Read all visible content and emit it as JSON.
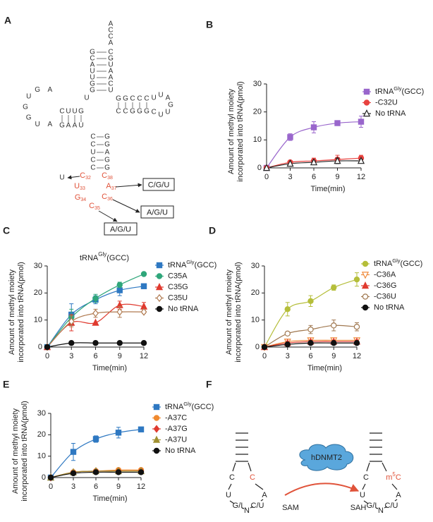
{
  "panel_labels": [
    "A",
    "B",
    "C",
    "D",
    "E",
    "F"
  ],
  "trna": {
    "acceptor_end": "ACCA",
    "acceptor_5": "GCAUUGG",
    "acceptor_3": "CGUAACU",
    "junction": "U",
    "t_top": "GGCCC",
    "t_bottom": "CCGGG",
    "t_loop": "UUAGUUC",
    "d_top": "CUUG",
    "d_bottom": "GAAU",
    "d_loop": "AGUGGUA",
    "ac_5": "CCUCC",
    "ac_3": "GGAGG",
    "loop": [
      {
        "base": "C",
        "num": "32"
      },
      {
        "base": "U",
        "num": "33"
      },
      {
        "base": "G",
        "num": "34"
      },
      {
        "base": "C",
        "num": "35"
      },
      {
        "base": "C",
        "num": "36"
      },
      {
        "base": "A",
        "num": "37"
      },
      {
        "base": "C",
        "num": "38"
      }
    ],
    "mutations": [
      "U",
      "C/G/U",
      "A/G/U",
      "A/G/U"
    ],
    "label": [
      "tRNA",
      "Gly",
      "(GCC)"
    ]
  },
  "chart_data": [
    {
      "type": "line",
      "xlabel": "Time(min)",
      "ylabel": [
        "Amount of methyl moiety",
        "incorporated into tRNA(pmol)"
      ],
      "x": [
        0,
        3,
        6,
        9,
        12
      ],
      "xlim": [
        0,
        12
      ],
      "ylim": [
        0,
        30
      ],
      "xticks": [
        0,
        3,
        6,
        9,
        12
      ],
      "yticks": [
        0,
        10,
        20,
        30
      ],
      "series": [
        {
          "name": [
            "tRNA",
            "Gly",
            "(GCC)"
          ],
          "color": "#9966cc",
          "marker": "square",
          "open": false,
          "values": [
            0,
            11,
            14.5,
            16,
            16.5
          ],
          "errors": [
            0,
            1.2,
            2,
            0.5,
            2
          ]
        },
        {
          "name": "-C32U",
          "color": "#e8423f",
          "marker": "circle",
          "open": false,
          "values": [
            0,
            2,
            2.5,
            3,
            3.5
          ],
          "errors": [
            0,
            0.5,
            1,
            1.5,
            1
          ]
        },
        {
          "name": "No tRNA",
          "color": "#222222",
          "marker": "triangle",
          "open": true,
          "values": [
            0,
            1.5,
            2,
            2.5,
            2.5
          ],
          "errors": [
            0,
            0,
            0.5,
            1,
            0.5
          ]
        }
      ]
    },
    {
      "type": "line",
      "xlabel": "Time(min)",
      "ylabel": [
        "Amount of methyl moiety",
        "incorporated into tRNA(pmol)"
      ],
      "x": [
        0,
        3,
        6,
        9,
        12
      ],
      "xlim": [
        0,
        12
      ],
      "ylim": [
        0,
        30
      ],
      "xticks": [
        0,
        3,
        6,
        9,
        12
      ],
      "yticks": [
        0,
        10,
        20,
        30
      ],
      "series": [
        {
          "name": [
            "tRNA",
            "Gly",
            "(GCC)"
          ],
          "color": "#2e78c2",
          "marker": "square",
          "open": false,
          "values": [
            0,
            12,
            17.5,
            21,
            22.5
          ],
          "errors": [
            0,
            4,
            1.5,
            2,
            0
          ]
        },
        {
          "name": "C35A",
          "color": "#2fa67a",
          "marker": "circle",
          "open": false,
          "values": [
            0,
            11,
            18,
            23,
            27
          ],
          "errors": [
            0,
            3,
            1.5,
            1,
            0.5
          ]
        },
        {
          "name": "C35G",
          "color": "#e03a2f",
          "marker": "triangle",
          "open": false,
          "values": [
            0,
            9,
            9,
            15.5,
            15
          ],
          "errors": [
            0,
            3,
            0,
            1.5,
            1.5
          ]
        },
        {
          "name": "C35U",
          "color": "#b07a50",
          "marker": "diamond",
          "open": true,
          "values": [
            0,
            9.5,
            12.5,
            13,
            13
          ],
          "errors": [
            0,
            2,
            1.5,
            2,
            0.5
          ]
        },
        {
          "name": "No tRNA",
          "color": "#111111",
          "marker": "circle",
          "open": false,
          "values": [
            0,
            1.5,
            1.5,
            1.5,
            1.5
          ],
          "errors": [
            0,
            0,
            0,
            0,
            0
          ]
        }
      ]
    },
    {
      "type": "line",
      "xlabel": "Time(min)",
      "ylabel": [
        "Amount of methyl moiety",
        "incorporated into tRNA(pmol)"
      ],
      "x": [
        0,
        3,
        6,
        9,
        12
      ],
      "xlim": [
        0,
        12
      ],
      "ylim": [
        0,
        30
      ],
      "xticks": [
        0,
        3,
        6,
        9,
        12
      ],
      "yticks": [
        0,
        10,
        20,
        30
      ],
      "series": [
        {
          "name": [
            "tRNA",
            "Gly",
            "(GCC)"
          ],
          "color": "#b5be3a",
          "marker": "circle",
          "open": false,
          "values": [
            0,
            14,
            17,
            22,
            25
          ],
          "errors": [
            0,
            2.5,
            2,
            1,
            2.5
          ]
        },
        {
          "name": "-C36A",
          "color": "#f08a3a",
          "marker": "triangle-down",
          "open": true,
          "values": [
            0,
            2,
            2.5,
            2.5,
            2.5
          ],
          "errors": [
            0,
            0.5,
            0.5,
            0.5,
            0.5
          ]
        },
        {
          "name": "-C36G",
          "color": "#e03a2f",
          "marker": "triangle",
          "open": false,
          "values": [
            0,
            1.5,
            2,
            2,
            2
          ],
          "errors": [
            0,
            0.5,
            0.5,
            0.5,
            0.5
          ]
        },
        {
          "name": "-C36U",
          "color": "#a07850",
          "marker": "circle",
          "open": true,
          "values": [
            0,
            5,
            6.5,
            8,
            7.5
          ],
          "errors": [
            0,
            0.5,
            1.5,
            2,
            1.5
          ]
        },
        {
          "name": "No tRNA",
          "color": "#111111",
          "marker": "circle",
          "open": false,
          "values": [
            0,
            1,
            1.5,
            1.5,
            1.5
          ],
          "errors": [
            0,
            0,
            0,
            0,
            0
          ]
        }
      ]
    },
    {
      "type": "line",
      "xlabel": "Time(min)",
      "ylabel": [
        "Amount of methyl moiety",
        "incorporated into tRNA(pmol)"
      ],
      "x": [
        0,
        3,
        6,
        9,
        12
      ],
      "xlim": [
        0,
        12
      ],
      "ylim": [
        0,
        30
      ],
      "xticks": [
        0,
        3,
        6,
        9,
        12
      ],
      "yticks": [
        0,
        10,
        20,
        30
      ],
      "series": [
        {
          "name": [
            "tRNA",
            "Gly",
            "(GCC)"
          ],
          "color": "#2e78c2",
          "marker": "square",
          "open": false,
          "values": [
            0,
            12,
            18,
            21,
            22.5
          ],
          "errors": [
            0,
            4,
            1.5,
            2.5,
            0
          ]
        },
        {
          "name": "-A37C",
          "color": "#f08a30",
          "marker": "circle",
          "open": false,
          "values": [
            0,
            2.5,
            3,
            3.5,
            3.5
          ],
          "errors": [
            0,
            0.5,
            0.5,
            0.5,
            0.5
          ]
        },
        {
          "name": "-A37G",
          "color": "#e03a2f",
          "marker": "diamond",
          "open": false,
          "values": [
            0,
            2.5,
            3,
            3,
            3
          ],
          "errors": [
            0,
            0.5,
            0.5,
            0.5,
            0.5
          ]
        },
        {
          "name": "-A37U",
          "color": "#a09030",
          "marker": "triangle",
          "open": false,
          "values": [
            0,
            2.5,
            3,
            3,
            3
          ],
          "errors": [
            0,
            0.5,
            0.5,
            0.5,
            0.5
          ]
        },
        {
          "name": "No tRNA",
          "color": "#111111",
          "marker": "circle",
          "open": false,
          "values": [
            0,
            2,
            2.5,
            2.5,
            2.5
          ],
          "errors": [
            0,
            0,
            0,
            0,
            0
          ]
        }
      ]
    }
  ],
  "diagram": {
    "left": {
      "bases": [
        "C",
        "U",
        "G/I",
        "N",
        "C/U",
        "A"
      ],
      "target": "C"
    },
    "enzyme": "hDNMT2",
    "substrate": "SAM",
    "product": "SAH",
    "right": {
      "bases": [
        "C",
        "U",
        "G/I",
        "N",
        "C/U",
        "A"
      ],
      "target": [
        "m",
        "5",
        "C"
      ]
    }
  }
}
